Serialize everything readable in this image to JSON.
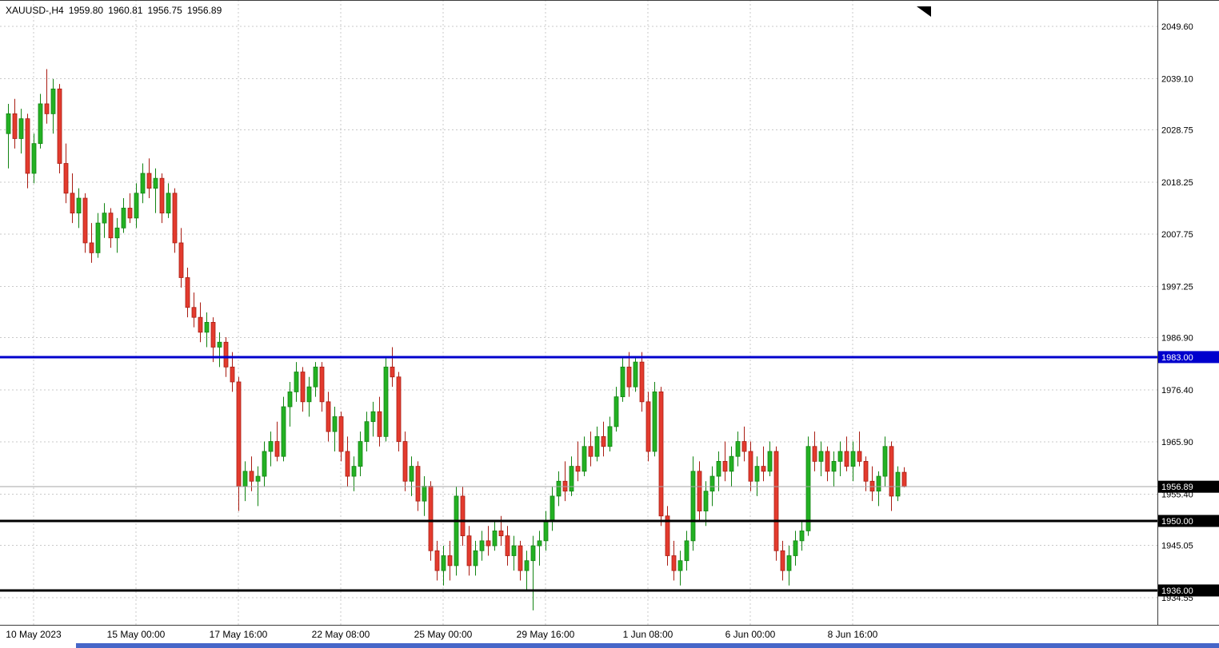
{
  "window": {
    "background": "#ffffff"
  },
  "title": {
    "symbol": "XAUUSD-,H4",
    "open": "1959.80",
    "high": "1960.81",
    "low": "1956.75",
    "close": "1956.89"
  },
  "colors": {
    "bull": "#23B123",
    "bull_border": "#128412",
    "bear": "#E33B2E",
    "bear_border": "#A91C12",
    "grid": "#c9c9c9",
    "axis_text": "#000000",
    "plot_border": "#3c3c3c",
    "current_price_line": "#a6a6a6",
    "current_price_tag_bg": "#000000",
    "tag_text": "#ffffff",
    "scrollbar_thumb": "#4666C8",
    "marker": "#000000"
  },
  "chart_data": {
    "type": "candlestick",
    "symbol": "XAUUSD-",
    "timeframe": "H4",
    "title": "XAUUSD-,H4 1959.80 1960.81 1956.75 1956.89",
    "last_ohlc": {
      "open": 1959.8,
      "high": 1960.81,
      "low": 1956.75,
      "close": 1956.89
    },
    "y_axis": {
      "side": "right",
      "range": [
        1929.0,
        2055.0
      ],
      "ticks": [
        {
          "v": 2049.6,
          "t": "2049.60"
        },
        {
          "v": 2039.1,
          "t": "2039.10"
        },
        {
          "v": 2028.75,
          "t": "2028.75"
        },
        {
          "v": 2018.25,
          "t": "2018.25"
        },
        {
          "v": 2007.75,
          "t": "2007.75"
        },
        {
          "v": 1997.25,
          "t": "1997.25"
        },
        {
          "v": 1986.9,
          "t": "1986.90"
        },
        {
          "v": 1976.4,
          "t": "1976.40"
        },
        {
          "v": 1965.9,
          "t": "1965.90"
        },
        {
          "v": 1955.4,
          "t": "1955.40"
        },
        {
          "v": 1945.05,
          "t": "1945.05"
        },
        {
          "v": 1934.55,
          "t": "1934.55"
        }
      ]
    },
    "x_axis": {
      "ticks": [
        {
          "index": 4,
          "label": "10 May 2023"
        },
        {
          "index": 20,
          "label": "15 May 00:00"
        },
        {
          "index": 36,
          "label": "17 May 16:00"
        },
        {
          "index": 52,
          "label": "22 May 08:00"
        },
        {
          "index": 68,
          "label": "25 May 00:00"
        },
        {
          "index": 84,
          "label": "29 May 16:00"
        },
        {
          "index": 100,
          "label": "1 Jun 08:00"
        },
        {
          "index": 116,
          "label": "6 Jun 00:00"
        },
        {
          "index": 132,
          "label": "8 Jun 16:00"
        }
      ]
    },
    "horizontal_lines": [
      {
        "price": 1983.0,
        "label": "1983.00",
        "color": "#0000CD",
        "width": 3
      },
      {
        "price": 1950.0,
        "label": "1950.00",
        "color": "#000000",
        "width": 3
      },
      {
        "price": 1936.0,
        "label": "1936.00",
        "color": "#000000",
        "width": 3
      }
    ],
    "current_price": {
      "value": 1956.89,
      "label": "1956.89"
    },
    "candles": [
      [
        2028,
        2034,
        2021,
        2032
      ],
      [
        2032,
        2035,
        2025,
        2027
      ],
      [
        2027,
        2033,
        2024,
        2031
      ],
      [
        2031,
        2032,
        2017,
        2020
      ],
      [
        2020,
        2028,
        2018,
        2026
      ],
      [
        2026,
        2036,
        2025,
        2034
      ],
      [
        2034,
        2041,
        2030,
        2032
      ],
      [
        2032,
        2039,
        2028,
        2037
      ],
      [
        2037,
        2038,
        2020,
        2022
      ],
      [
        2022,
        2026,
        2014,
        2016
      ],
      [
        2016,
        2020,
        2010,
        2012
      ],
      [
        2012,
        2017,
        2009,
        2015
      ],
      [
        2015,
        2016,
        2004,
        2006
      ],
      [
        2006,
        2010,
        2002,
        2004
      ],
      [
        2004,
        2012,
        2003,
        2010
      ],
      [
        2010,
        2014,
        2007,
        2012
      ],
      [
        2012,
        2013,
        2005,
        2007
      ],
      [
        2007,
        2011,
        2004,
        2009
      ],
      [
        2009,
        2015,
        2008,
        2013
      ],
      [
        2013,
        2016,
        2010,
        2011
      ],
      [
        2011,
        2018,
        2009,
        2016
      ],
      [
        2016,
        2022,
        2014,
        2020
      ],
      [
        2020,
        2023,
        2015,
        2017
      ],
      [
        2017,
        2021,
        2012,
        2019
      ],
      [
        2019,
        2020,
        2010,
        2012
      ],
      [
        2012,
        2018,
        2011,
        2016
      ],
      [
        2016,
        2017,
        2004,
        2006
      ],
      [
        2006,
        2009,
        1997,
        1999
      ],
      [
        1999,
        2001,
        1991,
        1993
      ],
      [
        1993,
        1996,
        1989,
        1991
      ],
      [
        1991,
        1994,
        1986,
        1988
      ],
      [
        1988,
        1992,
        1985,
        1990
      ],
      [
        1990,
        1991,
        1982,
        1985
      ],
      [
        1985,
        1988,
        1981,
        1986
      ],
      [
        1986,
        1987,
        1979,
        1981
      ],
      [
        1981,
        1984,
        1976,
        1978
      ],
      [
        1978,
        1979,
        1952,
        1957
      ],
      [
        1957,
        1962,
        1954,
        1960
      ],
      [
        1960,
        1963,
        1956,
        1958
      ],
      [
        1958,
        1961,
        1953,
        1959
      ],
      [
        1959,
        1966,
        1957,
        1964
      ],
      [
        1964,
        1968,
        1961,
        1966
      ],
      [
        1966,
        1970,
        1962,
        1963
      ],
      [
        1963,
        1975,
        1962,
        1973
      ],
      [
        1973,
        1978,
        1969,
        1976
      ],
      [
        1976,
        1982,
        1974,
        1980
      ],
      [
        1980,
        1981,
        1972,
        1974
      ],
      [
        1974,
        1979,
        1971,
        1977
      ],
      [
        1977,
        1982,
        1975,
        1981
      ],
      [
        1981,
        1982,
        1972,
        1974
      ],
      [
        1974,
        1976,
        1966,
        1968
      ],
      [
        1968,
        1973,
        1964,
        1971
      ],
      [
        1971,
        1972,
        1962,
        1964
      ],
      [
        1964,
        1967,
        1957,
        1959
      ],
      [
        1959,
        1963,
        1956,
        1961
      ],
      [
        1961,
        1968,
        1959,
        1966
      ],
      [
        1966,
        1972,
        1964,
        1970
      ],
      [
        1970,
        1974,
        1967,
        1972
      ],
      [
        1972,
        1975,
        1965,
        1967
      ],
      [
        1967,
        1983,
        1966,
        1981
      ],
      [
        1981,
        1985,
        1977,
        1979
      ],
      [
        1979,
        1980,
        1964,
        1966
      ],
      [
        1966,
        1968,
        1956,
        1958
      ],
      [
        1958,
        1963,
        1955,
        1961
      ],
      [
        1961,
        1962,
        1952,
        1954
      ],
      [
        1954,
        1959,
        1951,
        1957
      ],
      [
        1957,
        1958,
        1942,
        1944
      ],
      [
        1944,
        1946,
        1938,
        1940
      ],
      [
        1940,
        1945,
        1937,
        1943
      ],
      [
        1943,
        1946,
        1938,
        1941
      ],
      [
        1941,
        1957,
        1939,
        1955
      ],
      [
        1955,
        1957,
        1945,
        1947
      ],
      [
        1947,
        1949,
        1939,
        1941
      ],
      [
        1941,
        1946,
        1939,
        1944
      ],
      [
        1944,
        1948,
        1942,
        1946
      ],
      [
        1946,
        1949,
        1943,
        1945
      ],
      [
        1945,
        1950,
        1944,
        1948
      ],
      [
        1948,
        1951,
        1945,
        1947
      ],
      [
        1947,
        1949,
        1941,
        1943
      ],
      [
        1943,
        1947,
        1940,
        1945
      ],
      [
        1945,
        1946,
        1938,
        1940
      ],
      [
        1940,
        1944,
        1936,
        1942
      ],
      [
        1942,
        1947,
        1932,
        1945
      ],
      [
        1945,
        1948,
        1941,
        1946
      ],
      [
        1946,
        1952,
        1944,
        1950
      ],
      [
        1950,
        1957,
        1948,
        1955
      ],
      [
        1955,
        1960,
        1953,
        1958
      ],
      [
        1958,
        1962,
        1954,
        1956
      ],
      [
        1956,
        1963,
        1955,
        1961
      ],
      [
        1961,
        1966,
        1958,
        1960
      ],
      [
        1960,
        1967,
        1959,
        1965
      ],
      [
        1965,
        1968,
        1961,
        1963
      ],
      [
        1963,
        1969,
        1962,
        1967
      ],
      [
        1967,
        1970,
        1963,
        1965
      ],
      [
        1965,
        1971,
        1964,
        1969
      ],
      [
        1969,
        1977,
        1968,
        1975
      ],
      [
        1975,
        1983,
        1974,
        1981
      ],
      [
        1981,
        1984,
        1975,
        1977
      ],
      [
        1977,
        1983,
        1976,
        1982
      ],
      [
        1982,
        1984,
        1972,
        1974
      ],
      [
        1974,
        1976,
        1962,
        1964
      ],
      [
        1964,
        1978,
        1963,
        1976
      ],
      [
        1976,
        1977,
        1949,
        1951
      ],
      [
        1951,
        1953,
        1941,
        1943
      ],
      [
        1943,
        1946,
        1938,
        1940
      ],
      [
        1940,
        1944,
        1937,
        1942
      ],
      [
        1942,
        1948,
        1940,
        1946
      ],
      [
        1946,
        1963,
        1944,
        1960
      ],
      [
        1960,
        1962,
        1950,
        1952
      ],
      [
        1952,
        1958,
        1949,
        1956
      ],
      [
        1956,
        1961,
        1953,
        1959
      ],
      [
        1959,
        1964,
        1956,
        1962
      ],
      [
        1962,
        1966,
        1958,
        1960
      ],
      [
        1960,
        1965,
        1957,
        1963
      ],
      [
        1963,
        1968,
        1961,
        1966
      ],
      [
        1966,
        1969,
        1962,
        1964
      ],
      [
        1964,
        1966,
        1956,
        1958
      ],
      [
        1958,
        1963,
        1955,
        1961
      ],
      [
        1961,
        1965,
        1958,
        1960
      ],
      [
        1960,
        1966,
        1959,
        1964
      ],
      [
        1964,
        1965,
        1942,
        1944
      ],
      [
        1944,
        1946,
        1938,
        1940
      ],
      [
        1940,
        1945,
        1937,
        1943
      ],
      [
        1943,
        1948,
        1941,
        1946
      ],
      [
        1946,
        1950,
        1944,
        1948
      ],
      [
        1948,
        1967,
        1947,
        1965
      ],
      [
        1965,
        1968,
        1960,
        1962
      ],
      [
        1962,
        1966,
        1959,
        1964
      ],
      [
        1964,
        1965,
        1958,
        1960
      ],
      [
        1960,
        1964,
        1957,
        1962
      ],
      [
        1962,
        1966,
        1959,
        1964
      ],
      [
        1964,
        1967,
        1960,
        1961
      ],
      [
        1961,
        1966,
        1958,
        1964
      ],
      [
        1964,
        1968,
        1961,
        1962
      ],
      [
        1962,
        1963,
        1956,
        1958
      ],
      [
        1958,
        1961,
        1954,
        1956
      ],
      [
        1956,
        1960,
        1953,
        1959
      ],
      [
        1959,
        1967,
        1957,
        1965
      ],
      [
        1965,
        1966,
        1952,
        1955
      ],
      [
        1955,
        1961,
        1954,
        1959.8
      ],
      [
        1959.8,
        1960.81,
        1956.75,
        1956.89
      ]
    ]
  }
}
